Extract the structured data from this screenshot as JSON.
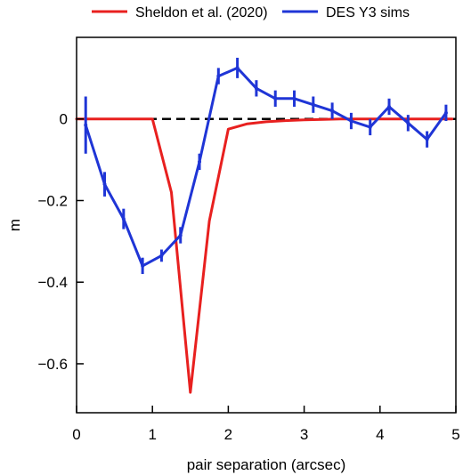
{
  "chart_data": {
    "type": "line",
    "title": "",
    "xlabel": "pair separation (arcsec)",
    "ylabel": "m",
    "xlim": [
      0,
      5
    ],
    "ylim": [
      -0.72,
      0.2
    ],
    "xticks": [
      0,
      1,
      2,
      3,
      4,
      5
    ],
    "yticks": [
      0,
      -0.2,
      -0.4,
      -0.6
    ],
    "xtick_labels": [
      "0",
      "1",
      "2",
      "3",
      "4",
      "5"
    ],
    "ytick_labels": [
      "0",
      "−0.2",
      "−0.4",
      "−0.6"
    ],
    "grid": false,
    "legend_placement": "top (outside, above plot)",
    "reference_line": {
      "y": 0,
      "style": "dashed",
      "color": "#000000"
    },
    "series": [
      {
        "name": "Sheldon et al. (2020)",
        "color": "#e8201f",
        "x": [
          0,
          1.0,
          1.25,
          1.5,
          1.75,
          2.0,
          2.25,
          2.5,
          2.75,
          3.0,
          3.25,
          3.5,
          3.75,
          4.0,
          4.25,
          4.5,
          4.75,
          4.95
        ],
        "y": [
          0,
          0,
          -0.18,
          -0.67,
          -0.25,
          -0.025,
          -0.012,
          -0.007,
          -0.004,
          -0.002,
          -0.001,
          0,
          0,
          0,
          0,
          0,
          0,
          0
        ]
      },
      {
        "name": "DES Y3 sims",
        "color": "#1f35d6",
        "x": [
          0.12,
          0.37,
          0.62,
          0.87,
          1.12,
          1.37,
          1.62,
          1.87,
          2.12,
          2.37,
          2.62,
          2.87,
          3.12,
          3.37,
          3.62,
          3.87,
          4.12,
          4.37,
          4.62,
          4.87
        ],
        "y": [
          -0.015,
          -0.16,
          -0.245,
          -0.36,
          -0.335,
          -0.285,
          -0.105,
          0.105,
          0.125,
          0.075,
          0.05,
          0.05,
          0.035,
          0.02,
          -0.005,
          -0.02,
          0.03,
          -0.01,
          -0.05,
          0.015
        ],
        "yerr": [
          0.07,
          0.03,
          0.025,
          0.02,
          0.015,
          0.02,
          0.02,
          0.02,
          0.025,
          0.02,
          0.02,
          0.02,
          0.02,
          0.02,
          0.02,
          0.02,
          0.02,
          0.02,
          0.02,
          0.02
        ]
      }
    ]
  }
}
